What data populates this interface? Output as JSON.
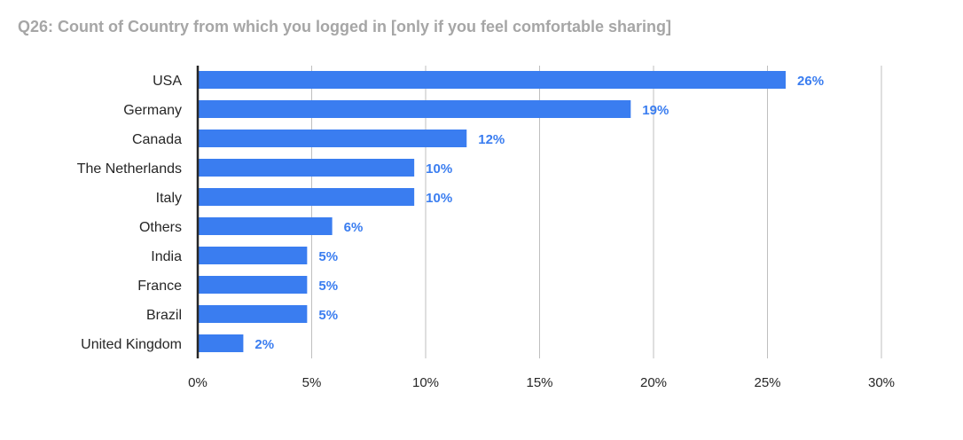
{
  "chart_data": {
    "type": "bar",
    "orientation": "horizontal",
    "title": "Q26: Count of Country from which you logged in [only if you feel comfortable sharing]",
    "categories": [
      "USA",
      "Germany",
      "Canada",
      "The Netherlands",
      "Italy",
      "Others",
      "India",
      "France",
      "Brazil",
      "United Kingdom"
    ],
    "values": [
      26,
      19,
      12,
      10,
      10,
      6,
      5,
      5,
      5,
      2
    ],
    "data_labels": [
      "26%",
      "19%",
      "12%",
      "10%",
      "10%",
      "6%",
      "5%",
      "5%",
      "5%",
      "2%"
    ],
    "display_values": [
      25.8,
      19.0,
      11.8,
      9.5,
      9.5,
      5.9,
      4.8,
      4.8,
      4.8,
      2.0
    ],
    "xlim": [
      0,
      30
    ],
    "x_ticks": [
      0,
      5,
      10,
      15,
      20,
      25,
      30
    ],
    "x_tick_labels": [
      "0%",
      "5%",
      "10%",
      "15%",
      "20%",
      "25%",
      "30%"
    ],
    "xlabel": "",
    "ylabel": "",
    "grid": "vertical",
    "legend": "none",
    "bar_color": "#3a7df0",
    "label_color": "#3a7df0"
  }
}
